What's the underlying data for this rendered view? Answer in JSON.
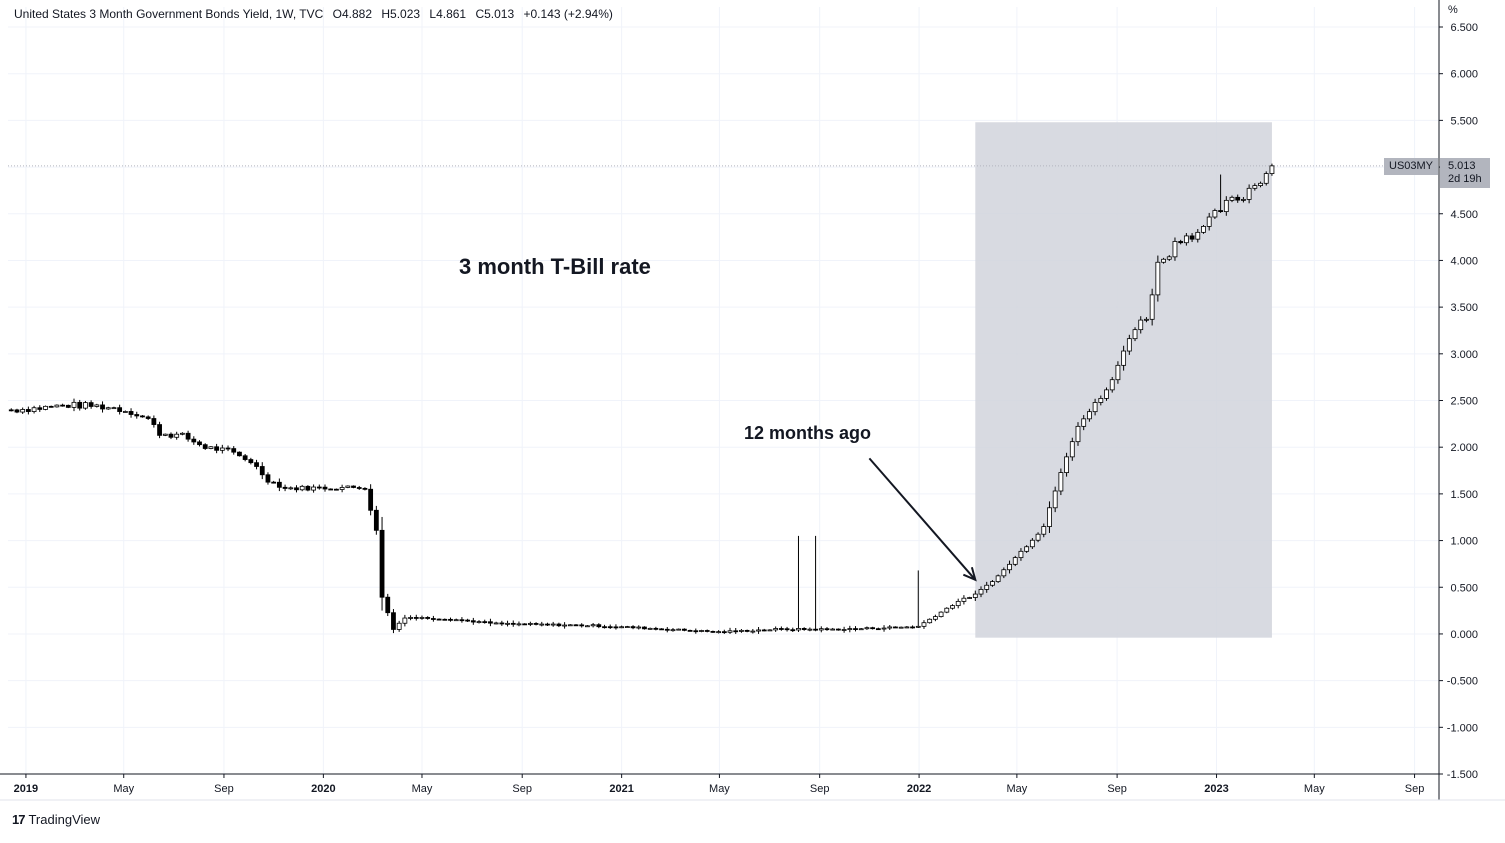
{
  "header": {
    "symbol_title": "United States 3 Month Government Bonds Yield, 1W, TVC",
    "open_key": "O",
    "open": "4.882",
    "high_key": "H",
    "high": "5.023",
    "low_key": "L",
    "low": "4.861",
    "close_key": "C",
    "close": "5.013",
    "change": "+0.143 (+2.94%)"
  },
  "y_unit": "%",
  "branding": {
    "logo_glyph": "17",
    "name": "TradingView"
  },
  "price_label": {
    "ticker": "US03MY",
    "value": "5.013",
    "countdown": "2d 19h"
  },
  "annotations": {
    "title": "3 month T-Bill rate",
    "arrow_label": "12 months ago"
  },
  "colors": {
    "candle_border": "#000000",
    "up_fill": "#ffffff",
    "down_fill": "#000000",
    "highlight_box": "#d1d4dc",
    "grid": "#f0f3fa",
    "price_line": "#b2b5be"
  },
  "chart_data": {
    "type": "candlestick",
    "interval": "1W",
    "grid": true,
    "ylim": [
      -1.5,
      6.5
    ],
    "xlim": [
      "2018-12-10",
      "2023-10-01"
    ],
    "y_ticks": [
      "6.500",
      "6.000",
      "5.500",
      "5.000",
      "4.500",
      "4.000",
      "3.500",
      "3.000",
      "2.500",
      "2.000",
      "1.500",
      "1.000",
      "0.500",
      "0.000",
      "-0.500",
      "-1.000",
      "-1.500"
    ],
    "x_ticks": [
      {
        "label": "2019",
        "date": "2019-01-01",
        "major": true
      },
      {
        "label": "May",
        "date": "2019-05-01",
        "major": false
      },
      {
        "label": "Sep",
        "date": "2019-09-01",
        "major": false
      },
      {
        "label": "2020",
        "date": "2020-01-01",
        "major": true
      },
      {
        "label": "May",
        "date": "2020-05-01",
        "major": false
      },
      {
        "label": "Sep",
        "date": "2020-09-01",
        "major": false
      },
      {
        "label": "2021",
        "date": "2021-01-01",
        "major": true
      },
      {
        "label": "May",
        "date": "2021-05-01",
        "major": false
      },
      {
        "label": "Sep",
        "date": "2021-09-01",
        "major": false
      },
      {
        "label": "2022",
        "date": "2022-01-01",
        "major": true
      },
      {
        "label": "May",
        "date": "2022-05-01",
        "major": false
      },
      {
        "label": "Sep",
        "date": "2022-09-01",
        "major": false
      },
      {
        "label": "2023",
        "date": "2023-01-01",
        "major": true
      },
      {
        "label": "May",
        "date": "2023-05-01",
        "major": false
      },
      {
        "label": "Sep",
        "date": "2023-09-01",
        "major": false
      }
    ],
    "last_price": 5.013,
    "highlight_region": {
      "x_start": "2022-03-11",
      "x_end": "2023-03-10",
      "y_low": -0.04,
      "y_high": 5.48
    },
    "arrow": {
      "from": {
        "date": "2021-11-01",
        "value": 1.88
      },
      "to": {
        "date": "2022-03-11",
        "value": 0.58
      }
    },
    "path": [
      [
        "2018-12-14",
        2.4
      ],
      [
        "2019-01-18",
        2.42
      ],
      [
        "2019-02-22",
        2.45
      ],
      [
        "2019-03-29",
        2.44
      ],
      [
        "2019-04-19",
        2.42
      ],
      [
        "2019-05-10",
        2.38
      ],
      [
        "2019-05-31",
        2.3
      ],
      [
        "2019-06-14",
        2.15
      ],
      [
        "2019-07-12",
        2.12
      ],
      [
        "2019-08-09",
        2.0
      ],
      [
        "2019-09-06",
        1.96
      ],
      [
        "2019-10-04",
        1.85
      ],
      [
        "2019-10-25",
        1.65
      ],
      [
        "2019-11-15",
        1.56
      ],
      [
        "2020-02-21",
        1.57
      ],
      [
        "2020-03-06",
        1.1
      ],
      [
        "2020-03-13",
        0.4
      ],
      [
        "2020-03-27",
        0.05
      ],
      [
        "2020-04-10",
        0.18
      ],
      [
        "2020-06-05",
        0.16
      ],
      [
        "2020-07-31",
        0.11
      ],
      [
        "2020-11-27",
        0.09
      ],
      [
        "2021-02-05",
        0.06
      ],
      [
        "2021-04-30",
        0.02
      ],
      [
        "2021-07-09",
        0.05
      ],
      [
        "2021-10-01",
        0.05
      ],
      [
        "2021-12-31",
        0.08
      ],
      [
        "2022-02-18",
        0.35
      ],
      [
        "2022-03-11",
        0.42
      ],
      [
        "2022-04-08",
        0.62
      ],
      [
        "2022-05-06",
        0.88
      ],
      [
        "2022-06-03",
        1.15
      ],
      [
        "2022-06-24",
        1.75
      ],
      [
        "2022-07-15",
        2.25
      ],
      [
        "2022-08-05",
        2.45
      ],
      [
        "2022-08-26",
        2.7
      ],
      [
        "2022-09-16",
        3.2
      ],
      [
        "2022-10-07",
        3.4
      ],
      [
        "2022-10-21",
        3.95
      ],
      [
        "2022-11-18",
        4.25
      ],
      [
        "2022-12-16",
        4.33
      ],
      [
        "2023-01-06",
        4.55
      ],
      [
        "2023-02-03",
        4.7
      ],
      [
        "2023-03-10",
        5.01
      ]
    ],
    "spikes": [
      {
        "date": "2021-08-06",
        "high": 1.05
      },
      {
        "date": "2021-08-27",
        "high": 1.05
      },
      {
        "date": "2021-12-31",
        "high": 0.68
      },
      {
        "date": "2023-01-06",
        "high": 4.92
      }
    ]
  }
}
